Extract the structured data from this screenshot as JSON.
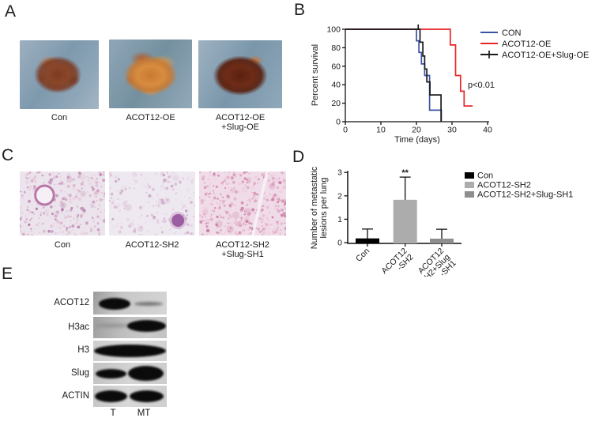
{
  "panels": {
    "A": {
      "label": "A",
      "images": [
        {
          "caption_lines": [
            "Con"
          ]
        },
        {
          "caption_lines": [
            "ACOT12-OE"
          ]
        },
        {
          "caption_lines": [
            "ACOT12-OE",
            "+Slug-OE"
          ]
        }
      ]
    },
    "B": {
      "label": "B"
    },
    "C": {
      "label": "C",
      "images": [
        {
          "caption_lines": [
            "Con"
          ]
        },
        {
          "caption_lines": [
            "ACOT12-SH2"
          ]
        },
        {
          "caption_lines": [
            "ACOT12-SH2",
            "+Slug-SH1"
          ]
        }
      ]
    },
    "D": {
      "label": "D"
    },
    "E": {
      "label": "E",
      "blot": {
        "rows": [
          {
            "label": "ACOT12"
          },
          {
            "label": "H3ac"
          },
          {
            "label": "H3"
          },
          {
            "label": "Slug"
          },
          {
            "label": "ACTIN"
          }
        ],
        "lanes": [
          "T",
          "MT"
        ]
      }
    }
  },
  "chart_data": [
    {
      "id": "survival",
      "type": "line",
      "subtype": "kaplan-meier",
      "xlabel": "Time (days)",
      "ylabel": "Percent survival",
      "xlim": [
        0,
        40
      ],
      "ylim": [
        0,
        100
      ],
      "xticks": [
        0,
        10,
        20,
        30,
        40
      ],
      "yticks": [
        0,
        20,
        40,
        60,
        80,
        100
      ],
      "annotation": "p<0.01",
      "legend_position": "right",
      "series": [
        {
          "name": "CON",
          "color": "#3A53A4",
          "steps": [
            [
              0,
              100
            ],
            [
              20,
              100
            ],
            [
              20,
              87.5
            ],
            [
              20.7,
              87.5
            ],
            [
              20.7,
              75
            ],
            [
              21.4,
              75
            ],
            [
              21.4,
              62.5
            ],
            [
              22.3,
              62.5
            ],
            [
              22.3,
              50
            ],
            [
              23.7,
              50
            ],
            [
              23.7,
              12.5
            ],
            [
              27,
              12.5
            ],
            [
              27,
              0
            ]
          ]
        },
        {
          "name": "ACOT12-OE",
          "color": "#E8262A",
          "steps": [
            [
              0,
              100
            ],
            [
              29.5,
              100
            ],
            [
              29.5,
              83
            ],
            [
              31,
              83
            ],
            [
              31,
              50
            ],
            [
              32.4,
              50
            ],
            [
              32.4,
              33
            ],
            [
              33.4,
              33
            ],
            [
              33.4,
              17
            ],
            [
              35.8,
              17
            ]
          ]
        },
        {
          "name": "ACOT12-OE+Slug-OE",
          "color": "#1A1A1A",
          "steps": [
            [
              0,
              100
            ],
            [
              21,
              100
            ],
            [
              21,
              86
            ],
            [
              21.8,
              86
            ],
            [
              21.8,
              71
            ],
            [
              22.3,
              71
            ],
            [
              22.3,
              57
            ],
            [
              22.9,
              57
            ],
            [
              22.9,
              43
            ],
            [
              23.8,
              43
            ],
            [
              23.8,
              29
            ],
            [
              26.9,
              29
            ],
            [
              26.9,
              0
            ]
          ],
          "censors": [
            [
              20.5,
              100
            ]
          ]
        }
      ]
    },
    {
      "id": "metastasis",
      "type": "bar",
      "ylabel_lines": [
        "Number of metastatic",
        "lesions per lung"
      ],
      "ylim": [
        0,
        3
      ],
      "yticks": [
        0,
        1,
        2,
        3
      ],
      "categories": [
        {
          "lines": [
            "Con"
          ]
        },
        {
          "lines": [
            "ACOT12",
            "-SH2"
          ]
        },
        {
          "lines": [
            "ACOT12",
            "-SH2+Slug",
            "-SH1"
          ]
        }
      ],
      "values": [
        0.18,
        1.83,
        0.17
      ],
      "errors_plus": [
        0.4,
        0.97,
        0.4
      ],
      "bar_colors": [
        "#000000",
        "#ACACAC",
        "#8E8E8E"
      ],
      "legend": [
        {
          "label": "Con",
          "color": "#000000"
        },
        {
          "label": "ACOT12-SH2",
          "color": "#ACACAC"
        },
        {
          "label": "ACOT12-SH2+Slug-SH1",
          "color": "#8E8E8E"
        }
      ],
      "significance": {
        "label": "**",
        "category_index": 1
      }
    }
  ]
}
